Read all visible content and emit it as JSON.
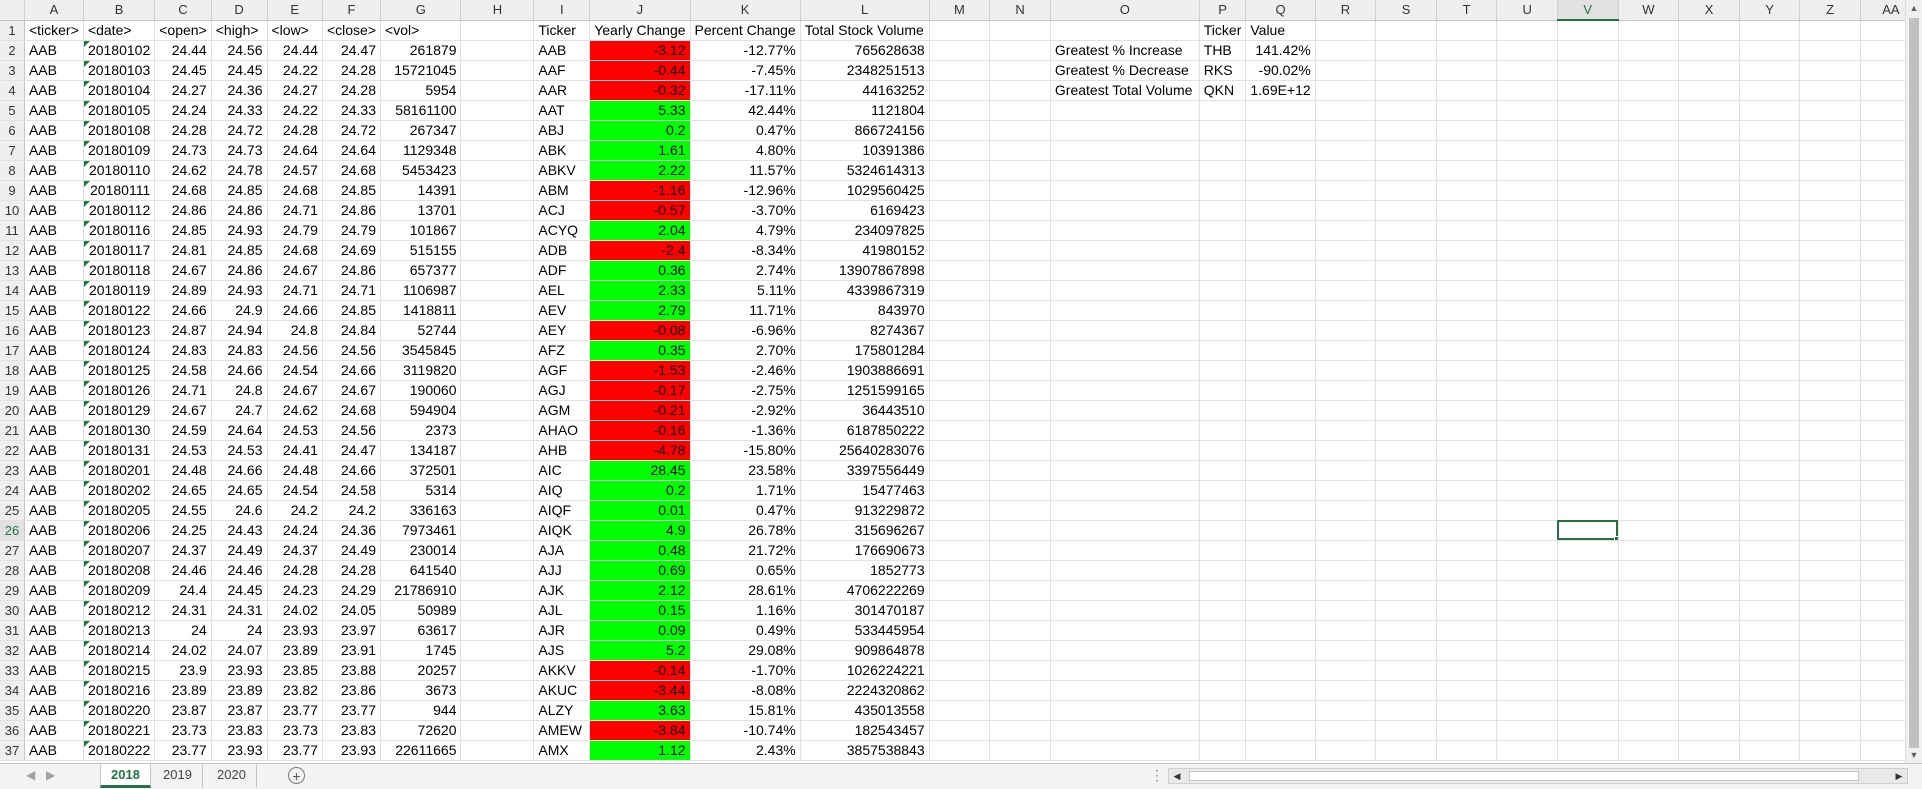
{
  "columns": [
    "A",
    "B",
    "C",
    "D",
    "E",
    "F",
    "G",
    "H",
    "I",
    "J",
    "K",
    "L",
    "M",
    "N",
    "O",
    "P",
    "Q",
    "R",
    "S",
    "T",
    "U",
    "V",
    "W",
    "X",
    "Y",
    "Z",
    "AA"
  ],
  "selected_cell": {
    "col": "V",
    "row": 26
  },
  "headers": {
    "ticker": "<ticker>",
    "date": "<date>",
    "open": "<open>",
    "high": "<high>",
    "low": "<low>",
    "close": "<close>",
    "vol": "<vol>",
    "summary_ticker": "Ticker",
    "yearly_change": "Yearly Change",
    "percent_change": "Percent Change",
    "total_volume": "Total Stock Volume",
    "greatest_ticker": "Ticker",
    "greatest_value": "Value"
  },
  "raw_rows": [
    [
      "AAB",
      "20180102",
      "24.44",
      "24.56",
      "24.44",
      "24.47",
      "261879"
    ],
    [
      "AAB",
      "20180103",
      "24.45",
      "24.45",
      "24.22",
      "24.28",
      "15721045"
    ],
    [
      "AAB",
      "20180104",
      "24.27",
      "24.36",
      "24.27",
      "24.28",
      "5954"
    ],
    [
      "AAB",
      "20180105",
      "24.24",
      "24.33",
      "24.22",
      "24.33",
      "58161100"
    ],
    [
      "AAB",
      "20180108",
      "24.28",
      "24.72",
      "24.28",
      "24.72",
      "267347"
    ],
    [
      "AAB",
      "20180109",
      "24.73",
      "24.73",
      "24.64",
      "24.64",
      "1129348"
    ],
    [
      "AAB",
      "20180110",
      "24.62",
      "24.78",
      "24.57",
      "24.68",
      "5453423"
    ],
    [
      "AAB",
      "20180111",
      "24.68",
      "24.85",
      "24.68",
      "24.85",
      "14391"
    ],
    [
      "AAB",
      "20180112",
      "24.86",
      "24.86",
      "24.71",
      "24.86",
      "13701"
    ],
    [
      "AAB",
      "20180116",
      "24.85",
      "24.93",
      "24.79",
      "24.79",
      "101867"
    ],
    [
      "AAB",
      "20180117",
      "24.81",
      "24.85",
      "24.68",
      "24.69",
      "515155"
    ],
    [
      "AAB",
      "20180118",
      "24.67",
      "24.86",
      "24.67",
      "24.86",
      "657377"
    ],
    [
      "AAB",
      "20180119",
      "24.89",
      "24.93",
      "24.71",
      "24.71",
      "1106987"
    ],
    [
      "AAB",
      "20180122",
      "24.66",
      "24.9",
      "24.66",
      "24.85",
      "1418811"
    ],
    [
      "AAB",
      "20180123",
      "24.87",
      "24.94",
      "24.8",
      "24.84",
      "52744"
    ],
    [
      "AAB",
      "20180124",
      "24.83",
      "24.83",
      "24.56",
      "24.56",
      "3545845"
    ],
    [
      "AAB",
      "20180125",
      "24.58",
      "24.66",
      "24.54",
      "24.66",
      "3119820"
    ],
    [
      "AAB",
      "20180126",
      "24.71",
      "24.8",
      "24.67",
      "24.67",
      "190060"
    ],
    [
      "AAB",
      "20180129",
      "24.67",
      "24.7",
      "24.62",
      "24.68",
      "594904"
    ],
    [
      "AAB",
      "20180130",
      "24.59",
      "24.64",
      "24.53",
      "24.56",
      "2373"
    ],
    [
      "AAB",
      "20180131",
      "24.53",
      "24.53",
      "24.41",
      "24.47",
      "134187"
    ],
    [
      "AAB",
      "20180201",
      "24.48",
      "24.66",
      "24.48",
      "24.66",
      "372501"
    ],
    [
      "AAB",
      "20180202",
      "24.65",
      "24.65",
      "24.54",
      "24.58",
      "5314"
    ],
    [
      "AAB",
      "20180205",
      "24.55",
      "24.6",
      "24.2",
      "24.2",
      "336163"
    ],
    [
      "AAB",
      "20180206",
      "24.25",
      "24.43",
      "24.24",
      "24.36",
      "7973461"
    ],
    [
      "AAB",
      "20180207",
      "24.37",
      "24.49",
      "24.37",
      "24.49",
      "230014"
    ],
    [
      "AAB",
      "20180208",
      "24.46",
      "24.46",
      "24.28",
      "24.28",
      "641540"
    ],
    [
      "AAB",
      "20180209",
      "24.4",
      "24.45",
      "24.23",
      "24.29",
      "21786910"
    ],
    [
      "AAB",
      "20180212",
      "24.31",
      "24.31",
      "24.02",
      "24.05",
      "50989"
    ],
    [
      "AAB",
      "20180213",
      "24",
      "24",
      "23.93",
      "23.97",
      "63617"
    ],
    [
      "AAB",
      "20180214",
      "24.02",
      "24.07",
      "23.89",
      "23.91",
      "1745"
    ],
    [
      "AAB",
      "20180215",
      "23.9",
      "23.93",
      "23.85",
      "23.88",
      "20257"
    ],
    [
      "AAB",
      "20180216",
      "23.89",
      "23.89",
      "23.82",
      "23.86",
      "3673"
    ],
    [
      "AAB",
      "20180220",
      "23.87",
      "23.87",
      "23.77",
      "23.77",
      "944"
    ],
    [
      "AAB",
      "20180221",
      "23.73",
      "23.83",
      "23.73",
      "23.83",
      "72620"
    ],
    [
      "AAB",
      "20180222",
      "23.77",
      "23.93",
      "23.77",
      "23.93",
      "22611665"
    ]
  ],
  "summary_rows": [
    [
      "AAB",
      "-3.12",
      "-12.77%",
      "765628638"
    ],
    [
      "AAF",
      "-0.44",
      "-7.45%",
      "2348251513"
    ],
    [
      "AAR",
      "-0.32",
      "-17.11%",
      "44163252"
    ],
    [
      "AAT",
      "5.33",
      "42.44%",
      "1121804"
    ],
    [
      "ABJ",
      "0.2",
      "0.47%",
      "866724156"
    ],
    [
      "ABK",
      "1.61",
      "4.80%",
      "10391386"
    ],
    [
      "ABKV",
      "2.22",
      "11.57%",
      "5324614313"
    ],
    [
      "ABM",
      "-1.16",
      "-12.96%",
      "1029560425"
    ],
    [
      "ACJ",
      "-0.57",
      "-3.70%",
      "6169423"
    ],
    [
      "ACYQ",
      "2.04",
      "4.79%",
      "234097825"
    ],
    [
      "ADB",
      "-2.4",
      "-8.34%",
      "41980152"
    ],
    [
      "ADF",
      "0.36",
      "2.74%",
      "13907867898"
    ],
    [
      "AEL",
      "2.33",
      "5.11%",
      "4339867319"
    ],
    [
      "AEV",
      "2.79",
      "11.71%",
      "843970"
    ],
    [
      "AEY",
      "-0.08",
      "-6.96%",
      "8274367"
    ],
    [
      "AFZ",
      "0.35",
      "2.70%",
      "175801284"
    ],
    [
      "AGF",
      "-1.53",
      "-2.46%",
      "1903886691"
    ],
    [
      "AGJ",
      "-0.17",
      "-2.75%",
      "1251599165"
    ],
    [
      "AGM",
      "-0.21",
      "-2.92%",
      "36443510"
    ],
    [
      "AHAO",
      "-0.16",
      "-1.36%",
      "6187850222"
    ],
    [
      "AHB",
      "-4.78",
      "-15.80%",
      "25640283076"
    ],
    [
      "AIC",
      "28.45",
      "23.58%",
      "3397556449"
    ],
    [
      "AIQ",
      "0.2",
      "1.71%",
      "15477463"
    ],
    [
      "AIQF",
      "0.01",
      "0.47%",
      "913229872"
    ],
    [
      "AIQK",
      "4.9",
      "26.78%",
      "315696267"
    ],
    [
      "AJA",
      "0.48",
      "21.72%",
      "176690673"
    ],
    [
      "AJJ",
      "0.69",
      "0.65%",
      "1852773"
    ],
    [
      "AJK",
      "2.12",
      "28.61%",
      "4706222269"
    ],
    [
      "AJL",
      "0.15",
      "1.16%",
      "301470187"
    ],
    [
      "AJR",
      "0.09",
      "0.49%",
      "533445954"
    ],
    [
      "AJS",
      "5.2",
      "29.08%",
      "909864878"
    ],
    [
      "AKKV",
      "-0.14",
      "-1.70%",
      "1026224221"
    ],
    [
      "AKUC",
      "-3.44",
      "-8.08%",
      "2224320862"
    ],
    [
      "ALZY",
      "3.63",
      "15.81%",
      "435013558"
    ],
    [
      "AMEW",
      "-3.84",
      "-10.74%",
      "182543457"
    ],
    [
      "AMX",
      "1.12",
      "2.43%",
      "3857538843"
    ]
  ],
  "greatest": [
    [
      "Greatest % Increase",
      "THB",
      "141.42%"
    ],
    [
      "Greatest % Decrease",
      "RKS",
      "-90.02%"
    ],
    [
      "Greatest Total Volume",
      "QKN",
      "1.69E+12"
    ]
  ],
  "colors": {
    "positive": "#00ff00",
    "negative": "#ff0000",
    "accent": "#217346"
  },
  "sheet_tabs": [
    {
      "label": "2018",
      "active": true
    },
    {
      "label": "2019",
      "active": false
    },
    {
      "label": "2020",
      "active": false
    }
  ],
  "icons": {
    "add_sheet": "plus-circle-icon",
    "scroll_left": "triangle-left-icon",
    "scroll_right": "triangle-right-icon"
  }
}
